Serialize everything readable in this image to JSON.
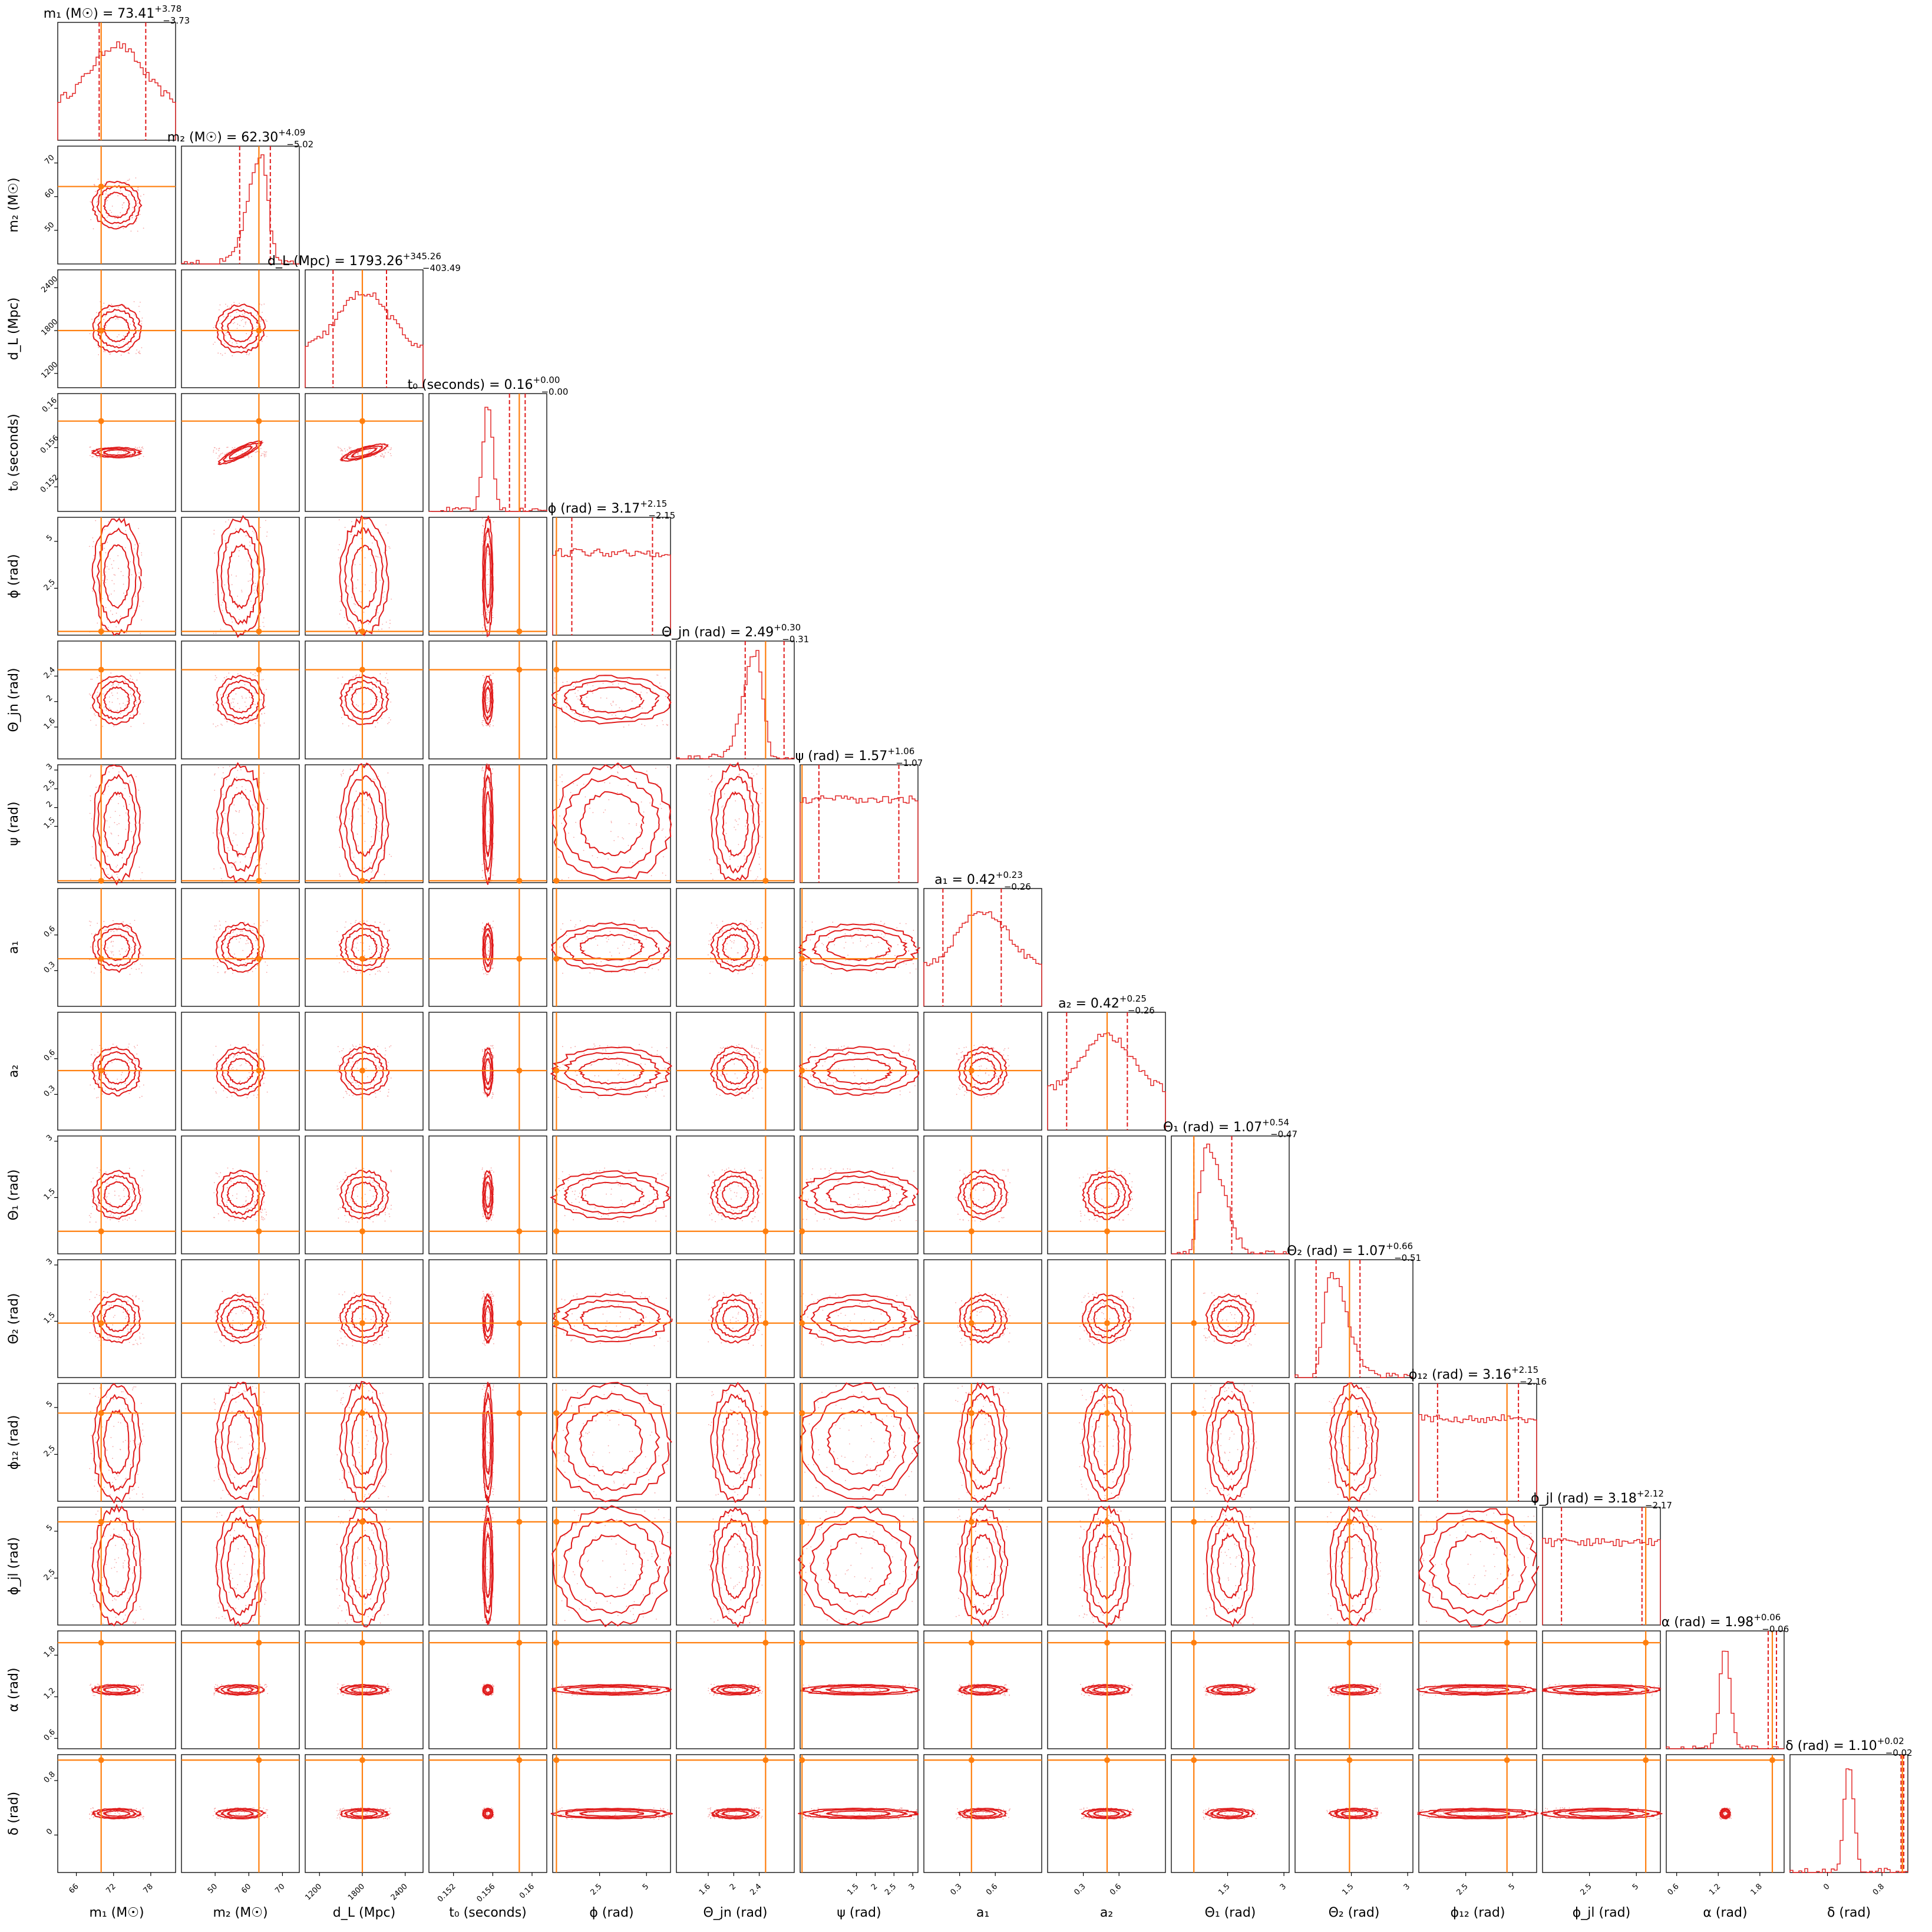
{
  "chart_data": {
    "type": "corner",
    "colors": {
      "posterior": "#e01b1b",
      "truth": "#ff7f0e",
      "frame": "#000000"
    },
    "parameters": [
      {
        "axis_label": "m₁ (M☉)",
        "title": "m₁ (M☉) = 73.41",
        "sup": "+3.78",
        "sub": "−3.73",
        "range": [
          63,
          82
        ],
        "ticks": [
          66,
          72,
          78
        ],
        "median": 73.41,
        "lo": 69.68,
        "hi": 77.19,
        "truth": 70.0,
        "shape": "broad"
      },
      {
        "axis_label": "m₂ (M☉)",
        "title": "m₂ (M☉) = 62.30",
        "sup": "+4.09",
        "sub": "−5.02",
        "range": [
          40,
          75
        ],
        "ticks": [
          50,
          60,
          70
        ],
        "median": 62.3,
        "lo": 57.28,
        "hi": 66.39,
        "truth": 63.0,
        "shape": "skewleft"
      },
      {
        "axis_label": "d_L (Mpc)",
        "title": "d_L (Mpc) = 1793.26",
        "sup": "+345.26",
        "sub": "−403.49",
        "range": [
          1000,
          2650
        ],
        "ticks": [
          1200,
          1800,
          2400
        ],
        "median": 1793.26,
        "lo": 1389.77,
        "hi": 2138.52,
        "truth": 1800,
        "shape": "broad"
      },
      {
        "axis_label": "t₀ (seconds)",
        "title": "t₀ (seconds) = 0.16",
        "sup": "+0.00",
        "sub": "−0.00",
        "range": [
          0.1495,
          0.1615
        ],
        "ticks": [
          0.152,
          0.156,
          0.16
        ],
        "median": 0.1585,
        "lo": 0.1577,
        "hi": 0.1593,
        "truth": 0.1587,
        "shape": "peak"
      },
      {
        "axis_label": "ϕ (rad)",
        "title": "ϕ (rad) = 3.17",
        "sup": "+2.15",
        "sub": "−2.15",
        "range": [
          0,
          6.28
        ],
        "ticks": [
          2.5,
          5.0
        ],
        "median": 3.17,
        "lo": 1.02,
        "hi": 5.32,
        "truth": 0.2,
        "shape": "flat"
      },
      {
        "axis_label": "Θ_jn (rad)",
        "title": "Θ_jn (rad) = 2.49",
        "sup": "+0.30",
        "sub": "−0.31",
        "range": [
          1.1,
          2.95
        ],
        "ticks": [
          1.6,
          2.0,
          2.4
        ],
        "median": 2.49,
        "lo": 2.18,
        "hi": 2.79,
        "truth": 2.5,
        "shape": "skewleft"
      },
      {
        "axis_label": "ψ (rad)",
        "title": "ψ (rad) = 1.57",
        "sup": "+1.06",
        "sub": "−1.07",
        "range": [
          0,
          3.14
        ],
        "ticks": [
          1.5,
          2.0,
          2.5,
          3.0
        ],
        "median": 1.57,
        "lo": 0.5,
        "hi": 2.63,
        "truth": 0.05,
        "shape": "flat"
      },
      {
        "axis_label": "a₁",
        "title": "a₁ = 0.42",
        "sup": "+0.23",
        "sub": "−0.26",
        "range": [
          0,
          0.99
        ],
        "ticks": [
          0.3,
          0.6
        ],
        "median": 0.42,
        "lo": 0.16,
        "hi": 0.65,
        "truth": 0.4,
        "shape": "broad"
      },
      {
        "axis_label": "a₂",
        "title": "a₂ = 0.42",
        "sup": "+0.25",
        "sub": "−0.26",
        "range": [
          0,
          0.99
        ],
        "ticks": [
          0.3,
          0.6
        ],
        "median": 0.42,
        "lo": 0.16,
        "hi": 0.67,
        "truth": 0.5,
        "shape": "broad"
      },
      {
        "axis_label": "Θ₁ (rad)",
        "title": "Θ₁ (rad) = 1.07",
        "sup": "+0.54",
        "sub": "−0.47",
        "range": [
          0,
          3.14
        ],
        "ticks": [
          1.5,
          3.0
        ],
        "median": 1.07,
        "lo": 0.6,
        "hi": 1.61,
        "truth": 0.6,
        "shape": "skewright"
      },
      {
        "axis_label": "Θ₂ (rad)",
        "title": "Θ₂ (rad) = 1.07",
        "sup": "+0.66",
        "sub": "−0.51",
        "range": [
          0,
          3.14
        ],
        "ticks": [
          1.5,
          3.0
        ],
        "median": 1.07,
        "lo": 0.56,
        "hi": 1.73,
        "truth": 1.45,
        "shape": "skewright"
      },
      {
        "axis_label": "ϕ₁₂ (rad)",
        "title": "ϕ₁₂ (rad) = 3.16",
        "sup": "+2.15",
        "sub": "−2.16",
        "range": [
          0,
          6.28
        ],
        "ticks": [
          2.5,
          5.0
        ],
        "median": 3.16,
        "lo": 1.0,
        "hi": 5.31,
        "truth": 4.7,
        "shape": "flat"
      },
      {
        "axis_label": "ϕ_jl (rad)",
        "title": "ϕ_jl (rad) = 3.18",
        "sup": "+2.12",
        "sub": "−2.17",
        "range": [
          0,
          6.28
        ],
        "ticks": [
          2.5,
          5.0
        ],
        "median": 3.18,
        "lo": 1.01,
        "hi": 5.3,
        "truth": 5.5,
        "shape": "flat"
      },
      {
        "axis_label": "α (rad)",
        "title": "α (rad) = 1.98",
        "sup": "+0.06",
        "sub": "−0.06",
        "range": [
          0.45,
          2.15
        ],
        "ticks": [
          0.6,
          1.2,
          1.8
        ],
        "median": 1.98,
        "lo": 1.92,
        "hi": 2.04,
        "truth": 1.98,
        "shape": "peak"
      },
      {
        "axis_label": "δ (rad)",
        "title": "δ (rad) = 1.10",
        "sup": "+0.02",
        "sub": "−0.02",
        "range": [
          -0.55,
          1.18
        ],
        "ticks": [
          0.0,
          0.8
        ],
        "median": 1.1,
        "lo": 1.08,
        "hi": 1.12,
        "truth": 1.1,
        "shape": "peak"
      }
    ],
    "correlated_pairs": [
      [
        0,
        1,
        -0.6
      ],
      [
        1,
        2,
        0.5
      ],
      [
        1,
        3,
        0.5
      ],
      [
        2,
        5,
        0.95
      ],
      [
        2,
        3,
        0.3
      ],
      [
        7,
        8,
        -0.4
      ],
      [
        9,
        10,
        -0.5
      ],
      [
        8,
        9,
        0.45
      ],
      [
        7,
        10,
        0.45
      ]
    ]
  }
}
